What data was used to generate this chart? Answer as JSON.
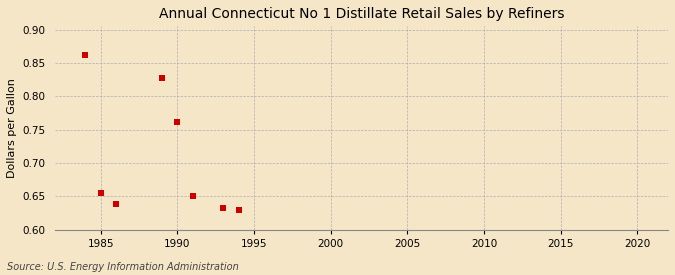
{
  "title": "Annual Connecticut No 1 Distillate Retail Sales by Refiners",
  "ylabel": "Dollars per Gallon",
  "source": "Source: U.S. Energy Information Administration",
  "background_color": "#f5e6c8",
  "x_data": [
    1984,
    1985,
    1986,
    1989,
    1990,
    1991,
    1993,
    1994
  ],
  "y_data": [
    0.862,
    0.655,
    0.638,
    0.828,
    0.762,
    0.65,
    0.632,
    0.63
  ],
  "marker_color": "#cc0000",
  "marker_size": 4,
  "xlim": [
    1982,
    2022
  ],
  "ylim": [
    0.6,
    0.905
  ],
  "xticks": [
    1985,
    1990,
    1995,
    2000,
    2005,
    2010,
    2015,
    2020
  ],
  "yticks": [
    0.6,
    0.65,
    0.7,
    0.75,
    0.8,
    0.85,
    0.9
  ],
  "grid_color": "#b0b0b0",
  "title_fontsize": 10,
  "label_fontsize": 8,
  "tick_fontsize": 7.5,
  "source_fontsize": 7
}
